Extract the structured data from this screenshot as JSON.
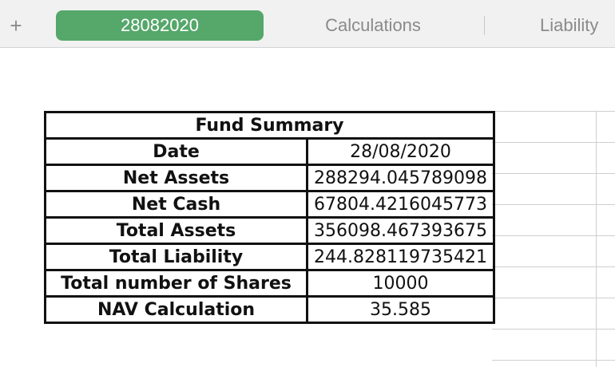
{
  "tabs": {
    "add_label": "+",
    "items": [
      {
        "label": "28082020",
        "active": true
      },
      {
        "label": "Calculations",
        "active": false
      },
      {
        "label": "Liability",
        "active": false
      }
    ],
    "active_color": "#55a76a"
  },
  "fund_summary": {
    "title": "Fund Summary",
    "rows": [
      {
        "label": "Date",
        "value": "28/08/2020"
      },
      {
        "label": "Net Assets",
        "value": "288294.045789098"
      },
      {
        "label": "Net Cash",
        "value": "67804.4216045773"
      },
      {
        "label": "Total Assets",
        "value": "356098.467393675"
      },
      {
        "label": "Total Liability",
        "value": "244.828119735421"
      },
      {
        "label": "Total number of Shares",
        "value": "10000"
      },
      {
        "label": "NAV Calculation",
        "value": "35.585"
      }
    ]
  }
}
